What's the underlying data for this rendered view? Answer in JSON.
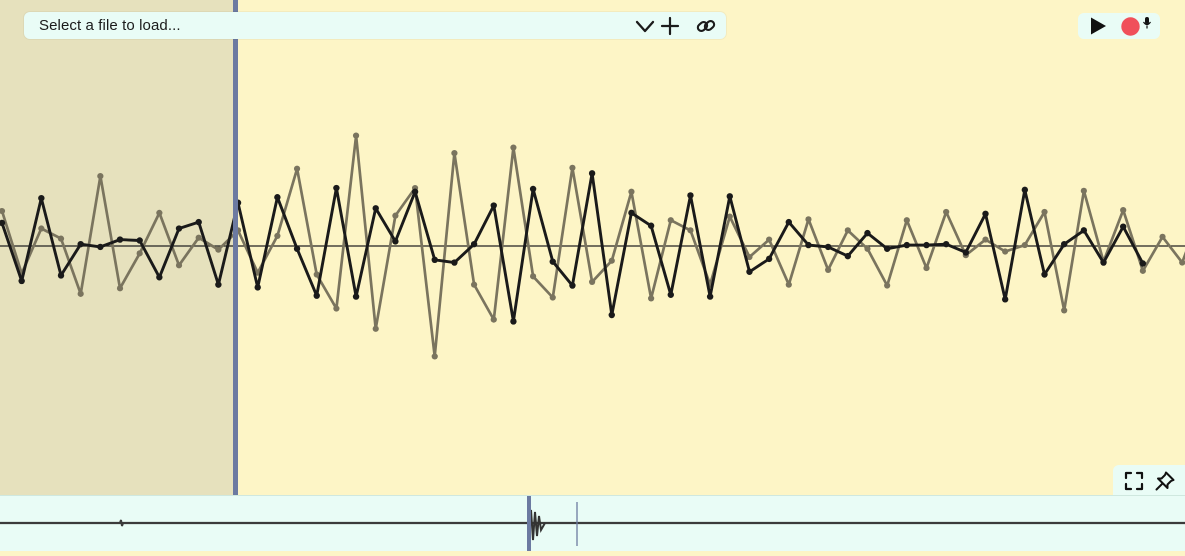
{
  "toolbar": {
    "file_select_placeholder": "Select a file to load...",
    "icons": [
      "chevron-down-icon",
      "plus-icon",
      "link-icon"
    ]
  },
  "transport": {
    "icons": [
      "play-icon",
      "record-icon",
      "microphone-icon"
    ]
  },
  "view_controls": {
    "icons": [
      "fullscreen-icon",
      "pin-icon"
    ]
  },
  "colors": {
    "background": "#fdf5c6",
    "selection_region": "#e6e1bd",
    "playhead": "#6c7aa1",
    "toolbar_background": "#e9fcf6",
    "waveform_primary": "#1a1a1a",
    "waveform_secondary": "#7a745e",
    "record": "#f0505a"
  },
  "waveforms": {
    "primary": [
      0.25,
      -0.38,
      0.52,
      -0.32,
      0.02,
      -0.01,
      0.07,
      0.06,
      -0.34,
      0.19,
      0.26,
      -0.42,
      0.47,
      -0.45,
      0.53,
      -0.03,
      -0.54,
      0.63,
      -0.55,
      0.41,
      0.05,
      0.59,
      -0.15,
      -0.18,
      0.02,
      0.44,
      -0.82,
      0.62,
      -0.17,
      -0.43,
      0.79,
      -0.75,
      0.36,
      0.22,
      -0.53,
      0.55,
      -0.55,
      0.54,
      -0.28,
      -0.14,
      0.26,
      0.01,
      -0.01,
      -0.11,
      0.14,
      -0.03,
      0.01,
      0.01,
      0.02,
      -0.07,
      0.35,
      -0.58,
      0.61,
      -0.31,
      0.02,
      0.17,
      -0.18,
      0.21,
      -0.19
    ],
    "secondary": [
      0.38,
      -0.3,
      0.19,
      0.08,
      -0.52,
      0.76,
      -0.46,
      -0.08,
      0.36,
      -0.21,
      0.09,
      -0.04,
      0.17,
      -0.29,
      0.11,
      0.84,
      -0.31,
      -0.68,
      1.2,
      -0.9,
      0.33,
      0.63,
      -1.2,
      1.01,
      -0.42,
      -0.8,
      1.07,
      -0.33,
      -0.56,
      0.85,
      -0.39,
      -0.16,
      0.59,
      -0.57,
      0.28,
      0.17,
      -0.42,
      0.32,
      -0.12,
      0.07,
      -0.42,
      0.29,
      -0.26,
      0.17,
      -0.03,
      -0.43,
      0.28,
      -0.24,
      0.37,
      -0.1,
      0.07,
      -0.06,
      0.01,
      0.37,
      -0.7,
      0.6,
      -0.17,
      0.39,
      -0.27,
      0.1,
      -0.18,
      0.4
    ]
  }
}
